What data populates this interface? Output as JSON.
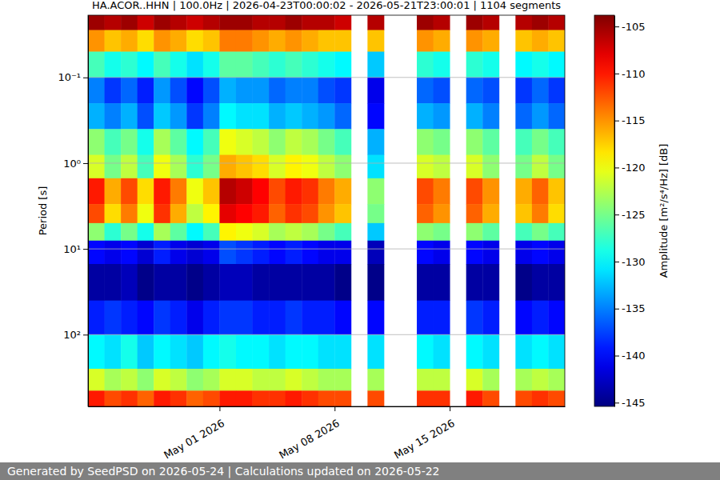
{
  "chart_data": {
    "type": "heatmap",
    "title": "HA.ACOR..HHN | 100.0Hz | 2026-04-23T00:00:02 - 2026-05-21T23:00:01 | 1104 segments",
    "y_label": "Period [s]",
    "footer": "Generated by SeedPSD on 2026-05-24 | Calculations updated on 2026-05-22",
    "log": "y",
    "grid": "y",
    "xlim": [
      "2026-04-23",
      "2026-05-22"
    ],
    "xticks": [
      {
        "value": "2026-05-01",
        "label": "May 01 2026"
      },
      {
        "value": "2026-05-08",
        "label": "May 08 2026"
      },
      {
        "value": "2026-05-15",
        "label": "May 15 2026"
      }
    ],
    "ylim": [
      0.0188,
      687
    ],
    "yticks": [
      {
        "value": 0.1,
        "label": "10⁻¹"
      },
      {
        "value": 1,
        "label": "10⁰"
      },
      {
        "value": 10,
        "label": "10¹"
      },
      {
        "value": 100,
        "label": "10²"
      }
    ],
    "x_bins": [
      "2026-04-23",
      "2026-04-24",
      "2026-04-25",
      "2026-04-26",
      "2026-04-27",
      "2026-04-28",
      "2026-04-29",
      "2026-04-30",
      "2026-05-01",
      "2026-05-02",
      "2026-05-03",
      "2026-05-04",
      "2026-05-05",
      "2026-05-06",
      "2026-05-07",
      "2026-05-08",
      "2026-05-09",
      "2026-05-10",
      "2026-05-11",
      "2026-05-12",
      "2026-05-13",
      "2026-05-14",
      "2026-05-15",
      "2026-05-16",
      "2026-05-17",
      "2026-05-18",
      "2026-05-19",
      "2026-05-20",
      "2026-05-21",
      "2026-05-22"
    ],
    "y_bins": [
      0.0188,
      0.028,
      0.05,
      0.1,
      0.2,
      0.4,
      0.8,
      1.5,
      3,
      5,
      8,
      15,
      40,
      100,
      250,
      450,
      687
    ],
    "z": [
      [
        -105,
        -115,
        -127,
        -135,
        -133,
        -124,
        -121,
        -110,
        -112,
        -124,
        -140,
        -144,
        -139,
        -130,
        -121,
        -110
      ],
      [
        -106,
        -117,
        -129,
        -138,
        -135,
        -127,
        -125,
        -116,
        -118,
        -128,
        -141,
        -144,
        -138,
        -131,
        -123,
        -112
      ],
      [
        -105,
        -116,
        -128,
        -136,
        -133,
        -125,
        -122,
        -112,
        -114,
        -125,
        -140,
        -143,
        -139,
        -129,
        -122,
        -111
      ],
      [
        -107,
        -118,
        -130,
        -139,
        -137,
        -129,
        -127,
        -118,
        -120,
        -129,
        -142,
        -145,
        -140,
        -132,
        -124,
        -113
      ],
      [
        -105,
        -115,
        -127,
        -134,
        -132,
        -123,
        -120,
        -110,
        -111,
        -123,
        -139,
        -144,
        -138,
        -130,
        -121,
        -110
      ],
      [
        -106,
        -116,
        -129,
        -137,
        -134,
        -126,
        -123,
        -114,
        -116,
        -126,
        -141,
        -144,
        -139,
        -131,
        -122,
        -111
      ],
      [
        -107,
        -118,
        -131,
        -140,
        -138,
        -130,
        -128,
        -120,
        -122,
        -130,
        -142,
        -145,
        -141,
        -132,
        -124,
        -113
      ],
      [
        -106,
        -117,
        -129,
        -137,
        -135,
        -127,
        -125,
        -117,
        -119,
        -127,
        -141,
        -144,
        -139,
        -130,
        -123,
        -112
      ],
      [
        -105,
        -114,
        -126,
        -133,
        -130,
        -120,
        -116,
        -106,
        -108,
        -119,
        -137,
        -143,
        -138,
        -129,
        -121,
        -110
      ],
      [
        -105,
        -114,
        -126,
        -134,
        -131,
        -121,
        -117,
        -107,
        -109,
        -120,
        -138,
        -143,
        -138,
        -130,
        -121,
        -110
      ],
      [
        -106,
        -115,
        -127,
        -134,
        -131,
        -122,
        -118,
        -109,
        -110,
        -121,
        -139,
        -144,
        -139,
        -130,
        -122,
        -111
      ],
      [
        -106,
        -116,
        -128,
        -136,
        -133,
        -124,
        -121,
        -112,
        -113,
        -123,
        -140,
        -144,
        -139,
        -131,
        -122,
        -111
      ],
      [
        -105,
        -115,
        -127,
        -135,
        -132,
        -122,
        -119,
        -110,
        -111,
        -122,
        -139,
        -144,
        -138,
        -130,
        -121,
        -110
      ],
      [
        -106,
        -116,
        -128,
        -135,
        -133,
        -123,
        -120,
        -111,
        -112,
        -123,
        -140,
        -144,
        -139,
        -130,
        -122,
        -111
      ],
      [
        -106,
        -117,
        -129,
        -137,
        -134,
        -125,
        -122,
        -114,
        -115,
        -125,
        -141,
        -144,
        -139,
        -131,
        -123,
        -112
      ],
      [
        -107,
        -117,
        -130,
        -138,
        -136,
        -127,
        -124,
        -116,
        -117,
        -127,
        -141,
        -145,
        -140,
        -131,
        -123,
        -112
      ],
      null,
      [
        -106,
        -117,
        -132,
        -141,
        -140,
        -133,
        -131,
        -124,
        -125,
        -132,
        -143,
        -145,
        -140,
        -131,
        -123,
        -112
      ],
      null,
      null,
      [
        -105,
        -115,
        -128,
        -136,
        -133,
        -124,
        -121,
        -112,
        -113,
        -124,
        -140,
        -144,
        -139,
        -130,
        -122,
        -111
      ],
      [
        -106,
        -116,
        -129,
        -137,
        -134,
        -125,
        -122,
        -114,
        -115,
        -125,
        -141,
        -144,
        -139,
        -131,
        -122,
        -111
      ],
      null,
      [
        -105,
        -115,
        -128,
        -136,
        -133,
        -124,
        -121,
        -112,
        -113,
        -124,
        -140,
        -144,
        -138,
        -130,
        -121,
        -110
      ],
      [
        -106,
        -116,
        -129,
        -137,
        -135,
        -126,
        -124,
        -115,
        -116,
        -126,
        -141,
        -144,
        -139,
        -131,
        -123,
        -112
      ],
      null,
      [
        -106,
        -117,
        -130,
        -138,
        -136,
        -127,
        -125,
        -116,
        -117,
        -127,
        -141,
        -145,
        -140,
        -131,
        -123,
        -112
      ],
      [
        -105,
        -116,
        -129,
        -136,
        -134,
        -125,
        -122,
        -113,
        -114,
        -125,
        -140,
        -144,
        -139,
        -130,
        -122,
        -111
      ],
      [
        -106,
        -117,
        -130,
        -138,
        -136,
        -127,
        -125,
        -117,
        -118,
        -127,
        -141,
        -144,
        -140,
        -131,
        -123,
        -112
      ]
    ],
    "colorbar": {
      "label": "Amplitude [m²/s⁴/Hz] [dB]",
      "range": [
        -145.4,
        -103.8
      ],
      "ticks": [
        -145,
        -140,
        -135,
        -130,
        -125,
        -120,
        -115,
        -110,
        -105
      ]
    }
  }
}
